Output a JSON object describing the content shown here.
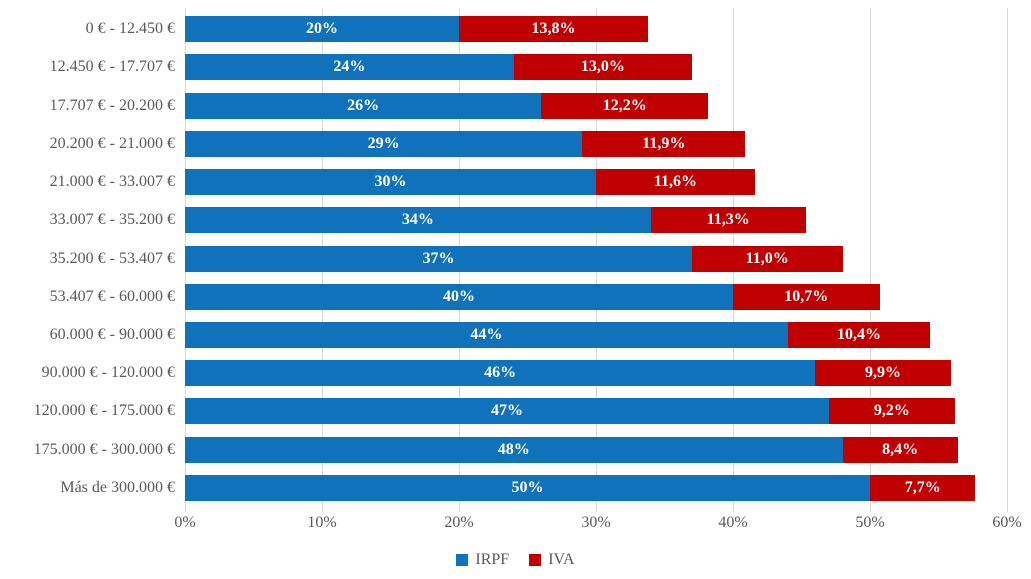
{
  "chart_data": {
    "type": "bar",
    "orientation": "horizontal",
    "stacked": true,
    "title": "",
    "xlabel": "",
    "ylabel": "",
    "grid": true,
    "categories": [
      "0 € - 12.450 €",
      "12.450 € - 17.707 €",
      "17.707 € - 20.200 €",
      "20.200 € - 21.000 €",
      "21.000 € - 33.007 €",
      "33.007 € - 35.200 €",
      "35.200 € - 53.407 €",
      "53.407 € - 60.000 €",
      "60.000 € - 90.000 €",
      "90.000 € - 120.000 €",
      "120.000 € - 175.000 €",
      "175.000 € - 300.000 €",
      "Más de 300.000 €"
    ],
    "series": [
      {
        "name": "IRPF",
        "color": "#1172bc",
        "values": [
          20,
          24,
          26,
          29,
          30,
          34,
          37,
          40,
          44,
          46,
          47,
          48,
          50
        ],
        "labels": [
          "20%",
          "24%",
          "26%",
          "29%",
          "30%",
          "34%",
          "37%",
          "40%",
          "44%",
          "46%",
          "47%",
          "48%",
          "50%"
        ]
      },
      {
        "name": "IVA",
        "color": "#c00000",
        "values": [
          13.8,
          13.0,
          12.2,
          11.9,
          11.6,
          11.3,
          11.0,
          10.7,
          10.4,
          9.9,
          9.2,
          8.4,
          7.7
        ],
        "labels": [
          "13,8%",
          "13,0%",
          "12,2%",
          "11,9%",
          "11,6%",
          "11,3%",
          "11,0%",
          "10,7%",
          "10,4%",
          "9,9%",
          "9,2%",
          "8,4%",
          "7,7%"
        ]
      }
    ],
    "x_axis": {
      "min": 0,
      "max": 60,
      "tick_step": 10,
      "tick_labels": [
        "0%",
        "10%",
        "20%",
        "30%",
        "40%",
        "50%",
        "60%"
      ]
    },
    "legend": {
      "position": "bottom",
      "entries": [
        "IRPF",
        "IVA"
      ]
    }
  },
  "colors": {
    "gridline": "#d9d9d9",
    "axis_text": "#595959",
    "bar_label_text": "#ffffff",
    "background": "#ffffff"
  }
}
